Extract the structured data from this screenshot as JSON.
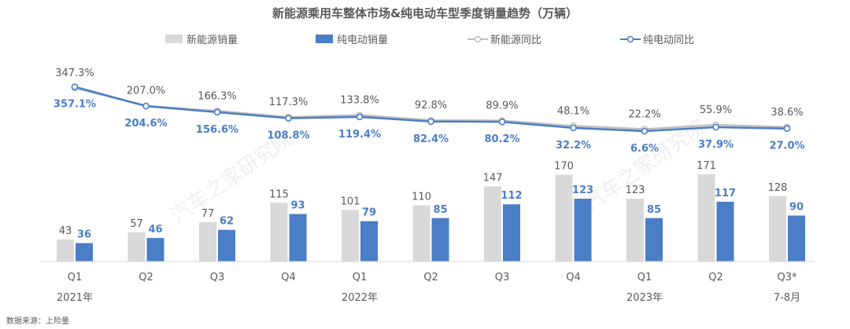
{
  "chart_data": {
    "type": "bar",
    "title": "新能源乘用车整体市场&纯电动车型季度销量趋势（万辆）",
    "categories": [
      "Q1",
      "Q2",
      "Q3",
      "Q4",
      "Q1",
      "Q2",
      "Q3",
      "Q4",
      "Q1",
      "Q2",
      "Q3*"
    ],
    "year_labels": [
      "2021年",
      "2022年",
      "2023年",
      "7-8月"
    ],
    "series": [
      {
        "name": "新能源销量",
        "kind": "bar",
        "color": "#d9d9d9",
        "values": [
          43,
          57,
          77,
          115,
          101,
          110,
          147,
          170,
          123,
          171,
          128
        ]
      },
      {
        "name": "纯电动销量",
        "kind": "bar",
        "color": "#4a7ec7",
        "values": [
          36,
          46,
          62,
          93,
          79,
          85,
          112,
          123,
          85,
          117,
          90
        ]
      },
      {
        "name": "新能源同比",
        "kind": "line",
        "color": "#bfbfbf",
        "values": [
          347.3,
          207.0,
          166.3,
          117.3,
          133.8,
          92.8,
          89.9,
          48.1,
          22.2,
          55.9,
          38.6
        ],
        "labels": [
          "347.3%",
          "207.0%",
          "166.3%",
          "117.3%",
          "133.8%",
          "92.8%",
          "89.9%",
          "48.1%",
          "22.2%",
          "55.9%",
          "38.6%"
        ]
      },
      {
        "name": "纯电动同比",
        "kind": "line",
        "color": "#4a7ec7",
        "values": [
          357.1,
          204.6,
          156.6,
          108.8,
          119.4,
          82.4,
          80.2,
          32.2,
          6.6,
          37.9,
          27.0
        ],
        "labels": [
          "357.1%",
          "204.6%",
          "156.6%",
          "108.8%",
          "119.4%",
          "82.4%",
          "80.2%",
          "32.2%",
          "6.6%",
          "37.9%",
          "27.0%"
        ]
      }
    ],
    "legend_position": "top",
    "grid": false
  },
  "source_note": "数据来源：上险量",
  "watermark": "汽车之家研究院"
}
